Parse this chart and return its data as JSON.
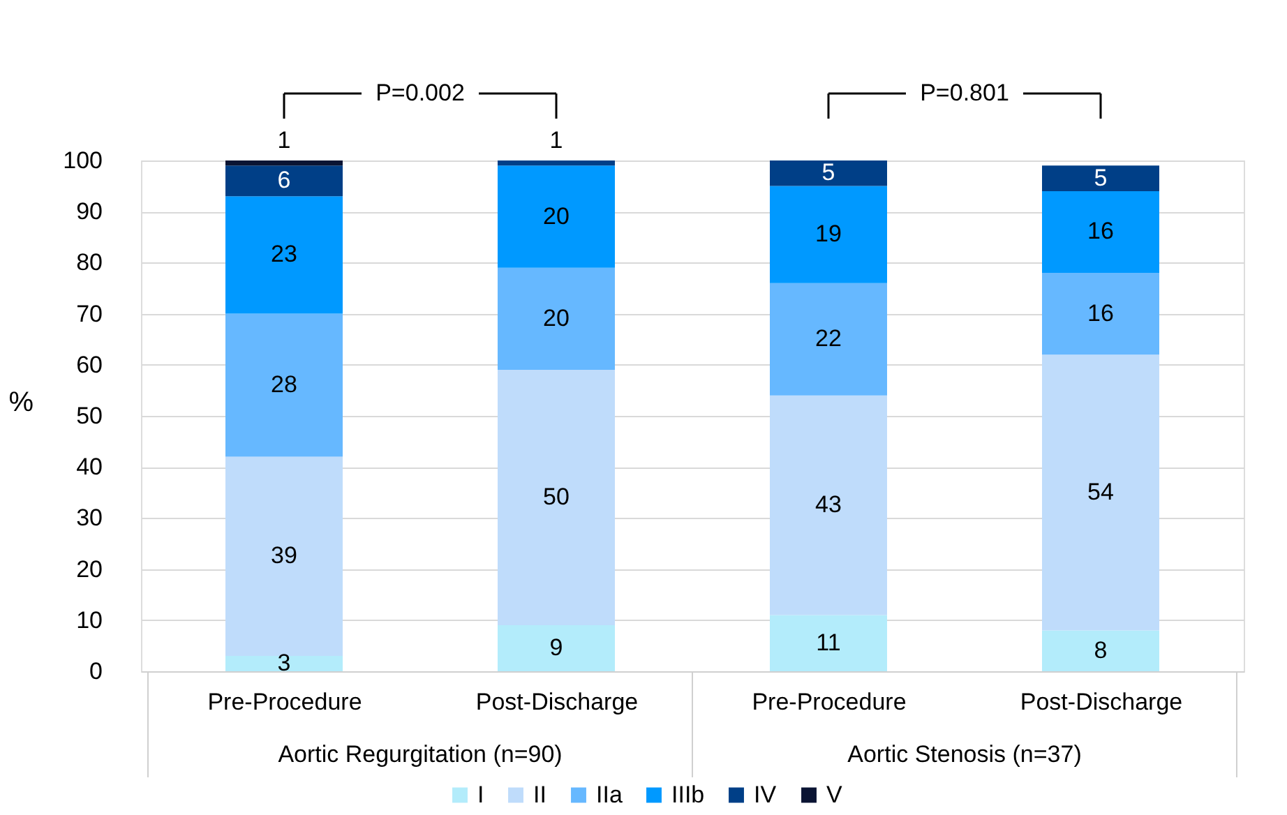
{
  "chart_data": {
    "type": "bar",
    "stacked": true,
    "categories": [
      "Pre-Procedure",
      "Post-Discharge",
      "Pre-Procedure",
      "Post-Discharge"
    ],
    "series": [
      {
        "name": "I",
        "color": "#b3ecfb",
        "values": [
          3,
          9,
          11,
          8
        ]
      },
      {
        "name": "II",
        "color": "#bfdcfb",
        "values": [
          39,
          50,
          43,
          54
        ]
      },
      {
        "name": "IIa",
        "color": "#66b8ff",
        "values": [
          28,
          20,
          22,
          16
        ]
      },
      {
        "name": "IIIb",
        "color": "#0099ff",
        "values": [
          23,
          20,
          19,
          16
        ]
      },
      {
        "name": "IV",
        "color": "#003f87",
        "values": [
          6,
          1,
          5,
          5
        ]
      },
      {
        "name": "V",
        "color": "#0a1433",
        "values": [
          1,
          null,
          null,
          null
        ]
      }
    ],
    "ylabel": "%",
    "ylim": [
      0,
      100
    ],
    "yticks": [
      0,
      10,
      20,
      30,
      40,
      50,
      60,
      70,
      80,
      90,
      100
    ],
    "grid": "y",
    "legend": "bottom",
    "data_labels": true,
    "annotations": [
      "P=0.002",
      "P=0.801",
      "Aortic Regurgitation (n=90)",
      "Aortic Stenosis (n=37)"
    ]
  }
}
